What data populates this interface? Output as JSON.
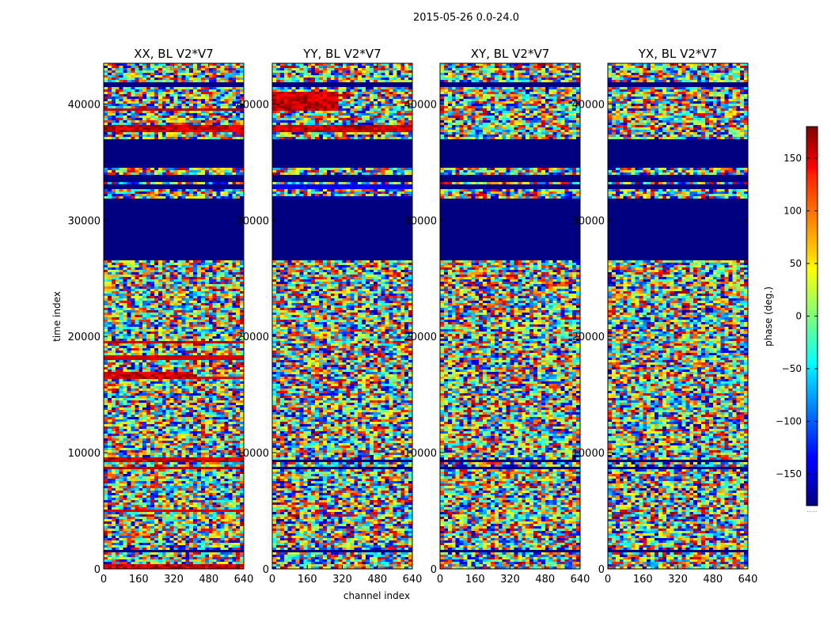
{
  "chart_data": {
    "type": "heatmap",
    "suptitle": "2015-05-26 0.0-24.0",
    "xlabel": "channel index",
    "ylabel": "time index",
    "x_ticks": [
      0,
      160,
      320,
      480,
      640
    ],
    "y_ticks": [
      0,
      10000,
      20000,
      30000,
      40000
    ],
    "xlim": [
      0,
      640
    ],
    "ylim": [
      0,
      43500
    ],
    "colorbar": {
      "label": "phase (deg.)",
      "ticks": [
        -150,
        -100,
        -50,
        0,
        50,
        100,
        150
      ],
      "range": [
        -180,
        180
      ],
      "colormap": "jet",
      "footer_text": "......"
    },
    "panels": [
      {
        "title": "XX, BL V2*V7",
        "blank_rows": [
          [
            26500,
            31800
          ],
          [
            33300,
            34000
          ],
          [
            34500,
            37000
          ],
          [
            41500,
            41800
          ]
        ],
        "lines": [
          [
            1500,
            240
          ],
          [
            5000,
            150
          ],
          [
            8700,
            160
          ],
          [
            9300,
            150
          ],
          [
            16500,
            145
          ],
          [
            18200,
            150
          ],
          [
            19500,
            160
          ],
          [
            32900,
            200
          ],
          [
            39500,
            160
          ]
        ],
        "red_bands": [
          [
            16300,
            16900,
            0,
            400
          ],
          [
            9200,
            9500,
            0,
            640
          ],
          [
            19400,
            19700,
            0,
            640
          ],
          [
            0,
            400,
            0,
            640
          ],
          [
            37500,
            38200,
            0,
            640
          ]
        ]
      },
      {
        "title": "YY, BL V2*V7",
        "blank_rows": [
          [
            26500,
            31800
          ],
          [
            33300,
            34000
          ],
          [
            34500,
            37000
          ],
          [
            41500,
            41800
          ]
        ],
        "lines": [
          [
            1500,
            240
          ],
          [
            8700,
            240
          ],
          [
            9300,
            240
          ],
          [
            32900,
            -140
          ],
          [
            31900,
            -160
          ]
        ],
        "red_bands": [
          [
            37500,
            38200,
            0,
            640
          ],
          [
            39500,
            41000,
            0,
            300
          ]
        ]
      },
      {
        "title": "XY, BL V2*V7",
        "blank_rows": [
          [
            26500,
            31800
          ],
          [
            33300,
            34000
          ],
          [
            34500,
            37000
          ],
          [
            41500,
            41800
          ]
        ],
        "lines": [
          [
            1500,
            240
          ],
          [
            8700,
            240
          ],
          [
            9300,
            240
          ],
          [
            32900,
            240
          ]
        ],
        "red_bands": []
      },
      {
        "title": "YX, BL V2*V7",
        "blank_rows": [
          [
            26500,
            31800
          ],
          [
            33300,
            34000
          ],
          [
            34500,
            37000
          ],
          [
            41500,
            41800
          ]
        ],
        "lines": [
          [
            1500,
            240
          ],
          [
            8700,
            240
          ],
          [
            9300,
            240
          ],
          [
            32900,
            240
          ]
        ],
        "red_bands": []
      }
    ]
  }
}
